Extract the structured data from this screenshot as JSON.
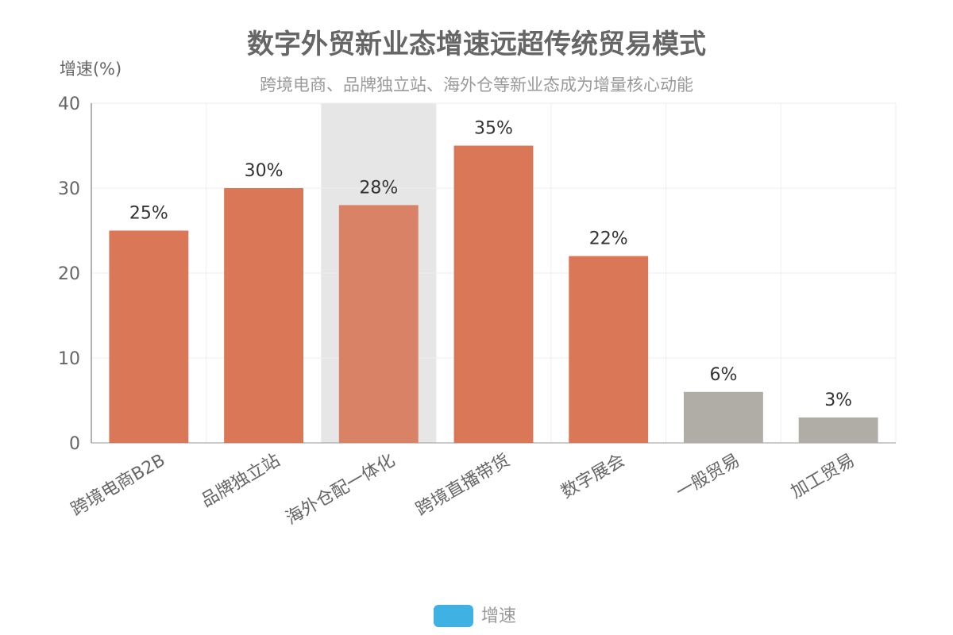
{
  "chart_data": {
    "type": "bar",
    "title": "数字外贸新业态增速远超传统贸易模式",
    "subtitle": "跨境电商、品牌独立站、海外仓等新业态成为增量核心动能",
    "ylabel": "增速(%)",
    "ylim": [
      0,
      40
    ],
    "yticks": [
      0,
      10,
      20,
      30,
      40
    ],
    "categories": [
      "跨境电商B2B",
      "品牌独立站",
      "海外仓配一体化",
      "跨境直播带货",
      "数字展会",
      "一般贸易",
      "加工贸易"
    ],
    "series": [
      {
        "name": "增速",
        "values": [
          25,
          30,
          28,
          35,
          22,
          6,
          3
        ],
        "data_labels": [
          "25%",
          "30%",
          "28%",
          "35%",
          "22%",
          "6%",
          "3%"
        ]
      }
    ],
    "bar_colors": [
      "#d97757",
      "#d97757",
      "#d98266",
      "#d97757",
      "#d97757",
      "#b0ada6",
      "#b0ada6"
    ],
    "highlight_category_index": 2,
    "grid": true,
    "legend": {
      "position": "bottom-center",
      "color": "#3fb1e3"
    }
  }
}
